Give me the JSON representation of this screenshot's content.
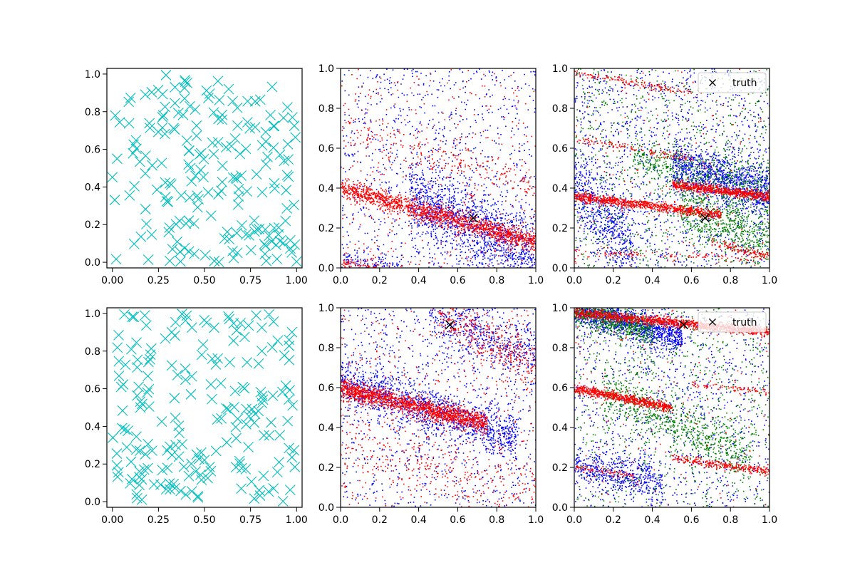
{
  "figure": {
    "rows": 2,
    "cols": 3
  },
  "colors": {
    "cyan": "#00bfbf",
    "blue": "#0000ff",
    "red": "#ff0000",
    "green": "#008000",
    "truth": "#000000"
  },
  "chart_data": [
    {
      "type": "scatter",
      "position": "row1-col1",
      "marker": "x",
      "xlim": [
        -0.03,
        1.03
      ],
      "ylim": [
        -0.03,
        1.03
      ],
      "xticks": [
        "0.00",
        "0.25",
        "0.50",
        "0.75",
        "1.00"
      ],
      "yticks": [
        "0.0",
        "0.2",
        "0.4",
        "0.6",
        "0.8",
        "1.0"
      ],
      "series": [
        {
          "color": "cyan",
          "count": 200,
          "distribution": "uniform"
        }
      ]
    },
    {
      "type": "scatter",
      "position": "row1-col2",
      "xlim": [
        0,
        1
      ],
      "ylim": [
        0,
        1
      ],
      "xticks": [
        "0.0",
        "0.2",
        "0.4",
        "0.6",
        "0.8",
        "1.0"
      ],
      "yticks": [
        "0.0",
        "0.2",
        "0.4",
        "0.6",
        "0.8",
        "1.0"
      ],
      "series": [
        {
          "color": "blue",
          "bands": [
            {
              "x0": 0.35,
              "y0": 0.37,
              "x1": 1.0,
              "y1": 0.05,
              "width": 0.1,
              "n": 1300
            },
            {
              "x0": 0.0,
              "y0": 0.05,
              "x1": 0.3,
              "y1": 0.0,
              "width": 0.03,
              "n": 120
            }
          ],
          "background": 900
        },
        {
          "color": "red",
          "bands": [
            {
              "x0": 0.0,
              "y0": 0.4,
              "x1": 1.0,
              "y1": 0.13,
              "width": 0.025,
              "n": 1500
            },
            {
              "x0": 0.0,
              "y0": 0.03,
              "x1": 0.2,
              "y1": 0.0,
              "width": 0.015,
              "n": 80
            },
            {
              "x0": 0.0,
              "y0": 0.7,
              "x1": 1.0,
              "y1": 0.4,
              "width": 0.04,
              "n": 200
            }
          ],
          "background": 400
        }
      ],
      "truth": {
        "x": 0.68,
        "y": 0.25
      }
    },
    {
      "type": "scatter",
      "position": "row1-col3",
      "xlim": [
        0,
        1
      ],
      "ylim": [
        0,
        1
      ],
      "xticks": [
        "0.0",
        "0.2",
        "0.4",
        "0.6",
        "0.8",
        "1.0"
      ],
      "yticks": [
        "0.0",
        "0.2",
        "0.4",
        "0.6",
        "0.8",
        "1.0"
      ],
      "series": [
        {
          "color": "blue",
          "bands": [
            {
              "x0": 0.5,
              "y0": 0.52,
              "x1": 1.0,
              "y1": 0.38,
              "width": 0.06,
              "n": 1100
            },
            {
              "x0": 0.0,
              "y0": 0.4,
              "x1": 0.3,
              "y1": 0.1,
              "width": 0.1,
              "n": 500
            }
          ],
          "background": 1300
        },
        {
          "color": "green",
          "bands": [
            {
              "x0": 0.3,
              "y0": 0.55,
              "x1": 1.0,
              "y1": 0.4,
              "width": 0.06,
              "n": 500
            },
            {
              "x0": 0.55,
              "y0": 0.3,
              "x1": 1.0,
              "y1": 0.15,
              "width": 0.07,
              "n": 600
            }
          ],
          "background": 900
        },
        {
          "color": "red",
          "bands": [
            {
              "x0": 0.0,
              "y0": 0.36,
              "x1": 0.75,
              "y1": 0.27,
              "width": 0.012,
              "n": 900
            },
            {
              "x0": 0.5,
              "y0": 0.42,
              "x1": 1.0,
              "y1": 0.36,
              "width": 0.012,
              "n": 700
            },
            {
              "x0": 0.0,
              "y0": 0.98,
              "x1": 0.6,
              "y1": 0.88,
              "width": 0.01,
              "n": 140
            },
            {
              "x0": 0.0,
              "y0": 0.65,
              "x1": 0.6,
              "y1": 0.55,
              "width": 0.01,
              "n": 120
            },
            {
              "x0": 0.0,
              "y0": 0.08,
              "x1": 1.0,
              "y1": 0.05,
              "width": 0.01,
              "n": 120
            },
            {
              "x0": 0.7,
              "y0": 0.13,
              "x1": 1.0,
              "y1": 0.06,
              "width": 0.01,
              "n": 120
            }
          ],
          "background": 150
        }
      ],
      "truth": {
        "x": 0.67,
        "y": 0.25
      },
      "legend": {
        "label": "truth",
        "loc": "upper right"
      }
    },
    {
      "type": "scatter",
      "position": "row2-col1",
      "marker": "x",
      "xlim": [
        -0.03,
        1.03
      ],
      "ylim": [
        -0.03,
        1.03
      ],
      "xticks": [
        "0.00",
        "0.25",
        "0.50",
        "0.75",
        "1.00"
      ],
      "yticks": [
        "0.0",
        "0.2",
        "0.4",
        "0.6",
        "0.8",
        "1.0"
      ],
      "series": [
        {
          "color": "cyan",
          "count": 200,
          "distribution": "uniform"
        }
      ]
    },
    {
      "type": "scatter",
      "position": "row2-col2",
      "xlim": [
        0,
        1
      ],
      "ylim": [
        0,
        1
      ],
      "xticks": [
        "0.0",
        "0.2",
        "0.4",
        "0.6",
        "0.8",
        "1.0"
      ],
      "yticks": [
        "0.0",
        "0.2",
        "0.4",
        "0.6",
        "0.8",
        "1.0"
      ],
      "series": [
        {
          "color": "blue",
          "bands": [
            {
              "x0": 0.0,
              "y0": 0.63,
              "x1": 0.9,
              "y1": 0.35,
              "width": 0.06,
              "n": 1300
            },
            {
              "x0": 0.45,
              "y0": 1.0,
              "x1": 1.0,
              "y1": 0.75,
              "width": 0.07,
              "n": 500
            }
          ],
          "background": 900
        },
        {
          "color": "red",
          "bands": [
            {
              "x0": 0.0,
              "y0": 0.6,
              "x1": 0.75,
              "y1": 0.42,
              "width": 0.025,
              "n": 1500
            },
            {
              "x0": 0.5,
              "y0": 0.97,
              "x1": 1.0,
              "y1": 0.7,
              "width": 0.06,
              "n": 350
            },
            {
              "x0": 0.0,
              "y0": 0.3,
              "x1": 1.0,
              "y1": 0.1,
              "width": 0.08,
              "n": 250
            }
          ],
          "background": 500
        }
      ],
      "truth": {
        "x": 0.56,
        "y": 0.915
      }
    },
    {
      "type": "scatter",
      "position": "row2-col3",
      "xlim": [
        0,
        1
      ],
      "ylim": [
        0,
        1
      ],
      "xticks": [
        "0.0",
        "0.2",
        "0.4",
        "0.6",
        "0.8",
        "1.0"
      ],
      "yticks": [
        "0.0",
        "0.2",
        "0.4",
        "0.6",
        "0.8",
        "1.0"
      ],
      "series": [
        {
          "color": "blue",
          "bands": [
            {
              "x0": 0.0,
              "y0": 1.0,
              "x1": 0.55,
              "y1": 0.85,
              "width": 0.04,
              "n": 1200
            },
            {
              "x0": 0.0,
              "y0": 0.22,
              "x1": 0.45,
              "y1": 0.12,
              "width": 0.05,
              "n": 500
            }
          ],
          "background": 1000
        },
        {
          "color": "green",
          "bands": [
            {
              "x0": 0.0,
              "y0": 1.0,
              "x1": 0.4,
              "y1": 0.88,
              "width": 0.04,
              "n": 700
            },
            {
              "x0": 0.15,
              "y0": 0.58,
              "x1": 0.9,
              "y1": 0.25,
              "width": 0.06,
              "n": 700
            }
          ],
          "background": 800
        },
        {
          "color": "red",
          "bands": [
            {
              "x0": 0.0,
              "y0": 0.98,
              "x1": 1.0,
              "y1": 0.88,
              "width": 0.012,
              "n": 1200
            },
            {
              "x0": 0.0,
              "y0": 0.6,
              "x1": 0.5,
              "y1": 0.5,
              "width": 0.012,
              "n": 700
            },
            {
              "x0": 0.6,
              "y0": 0.62,
              "x1": 1.0,
              "y1": 0.58,
              "width": 0.008,
              "n": 80
            },
            {
              "x0": 0.5,
              "y0": 0.25,
              "x1": 1.0,
              "y1": 0.18,
              "width": 0.01,
              "n": 300
            },
            {
              "x0": 0.0,
              "y0": 0.2,
              "x1": 0.3,
              "y1": 0.16,
              "width": 0.01,
              "n": 80
            }
          ],
          "background": 150
        }
      ],
      "truth": {
        "x": 0.56,
        "y": 0.915
      },
      "legend": {
        "label": "truth",
        "loc": "upper right"
      }
    }
  ]
}
